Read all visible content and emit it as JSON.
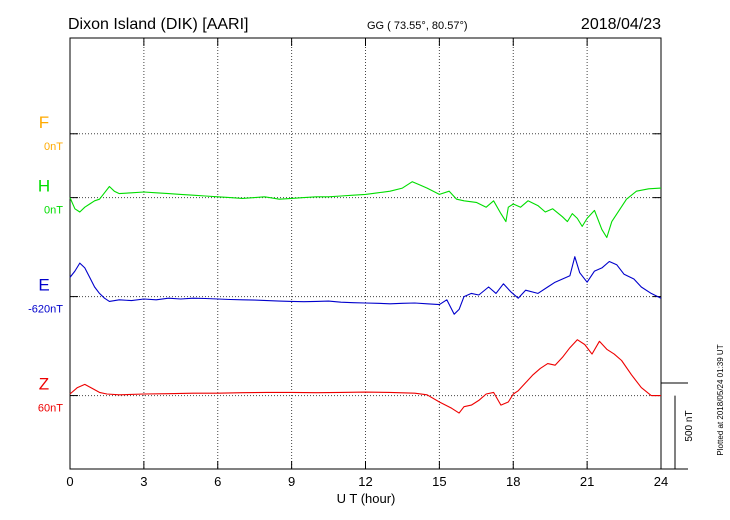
{
  "header": {
    "station": "Dixon Island (DIK)  [AARI]",
    "coords": "GG ( 73.55°,  80.57°)",
    "date": "2018/04/23"
  },
  "side_note": "Plotted at 2018/05/24 01:39 UT",
  "scale_label": "500 nT",
  "chart_data": {
    "type": "line",
    "title": "Dixon Island (DIK)  [AARI]",
    "xlabel": "U T (hour)",
    "ylabel": "",
    "xlim": [
      0,
      24
    ],
    "xticks": [
      "0",
      "3",
      "6",
      "9",
      "12",
      "15",
      "18",
      "21",
      "24"
    ],
    "ylim_nT": [
      -1700,
      1000
    ],
    "grid": true,
    "scale_bar_nT": 500,
    "series": [
      {
        "name": "F",
        "baseline_label": "0nT",
        "offset_nT": 400,
        "color": "#ffaa00",
        "x": [],
        "y": []
      },
      {
        "name": "H",
        "baseline_label": "0nT",
        "offset_nT": 0,
        "color": "#00dd00",
        "x": [
          0,
          0.2,
          0.4,
          0.6,
          0.8,
          1.0,
          1.2,
          1.4,
          1.6,
          1.8,
          2.0,
          2.5,
          3.0,
          3.5,
          4.0,
          4.5,
          5.0,
          5.5,
          6.0,
          6.5,
          7.0,
          7.5,
          7.9,
          8.1,
          8.5,
          9.0,
          9.5,
          10.0,
          10.5,
          11.0,
          11.5,
          12.0,
          12.5,
          13.0,
          13.5,
          13.9,
          14.2,
          14.5,
          15.0,
          15.4,
          15.7,
          16.0,
          16.5,
          16.9,
          17.2,
          17.5,
          17.7,
          17.8,
          18.0,
          18.3,
          18.6,
          19.0,
          19.3,
          19.6,
          20.0,
          20.2,
          20.4,
          20.6,
          20.8,
          21.0,
          21.3,
          21.6,
          21.8,
          22.0,
          22.3,
          22.6,
          23.0,
          23.5,
          24.0
        ],
        "y": [
          0,
          -70,
          -90,
          -60,
          -40,
          -20,
          -10,
          30,
          70,
          40,
          25,
          30,
          35,
          30,
          25,
          20,
          15,
          10,
          5,
          0,
          -5,
          0,
          5,
          0,
          -10,
          -5,
          0,
          5,
          5,
          10,
          15,
          20,
          30,
          40,
          60,
          100,
          80,
          60,
          20,
          40,
          -10,
          -20,
          -30,
          -60,
          -20,
          -100,
          -150,
          -60,
          -40,
          -60,
          -20,
          -50,
          -90,
          -70,
          -120,
          -150,
          -100,
          -130,
          -180,
          -130,
          -80,
          -200,
          -250,
          -150,
          -80,
          -10,
          40,
          55,
          60
        ]
      },
      {
        "name": "E",
        "baseline_label": "-620nT",
        "offset_nT": -620,
        "color": "#0000cc",
        "x": [
          0,
          0.2,
          0.4,
          0.6,
          0.8,
          1.0,
          1.2,
          1.4,
          1.6,
          2.0,
          2.5,
          3.0,
          3.5,
          4.0,
          4.5,
          5.0,
          5.5,
          6.0,
          6.5,
          7.0,
          7.5,
          8.0,
          8.5,
          9.0,
          9.5,
          10.0,
          10.5,
          11.0,
          11.5,
          12.0,
          12.5,
          13.0,
          13.5,
          14.0,
          14.5,
          15.0,
          15.3,
          15.6,
          15.8,
          16.0,
          16.3,
          16.6,
          17.0,
          17.3,
          17.6,
          17.9,
          18.2,
          18.5,
          19.0,
          19.4,
          19.7,
          20.0,
          20.3,
          20.5,
          20.7,
          21.0,
          21.3,
          21.6,
          21.9,
          22.2,
          22.5,
          22.9,
          23.2,
          23.6,
          24.0
        ],
        "y": [
          120,
          160,
          210,
          180,
          120,
          60,
          20,
          -10,
          -30,
          -20,
          -25,
          -15,
          -20,
          -10,
          -15,
          -10,
          -12,
          -15,
          -18,
          -20,
          -22,
          -25,
          -28,
          -30,
          -32,
          -30,
          -28,
          -35,
          -38,
          -40,
          -42,
          -45,
          -42,
          -40,
          -45,
          -50,
          -20,
          -110,
          -80,
          0,
          20,
          10,
          60,
          20,
          80,
          30,
          -10,
          40,
          20,
          60,
          90,
          110,
          130,
          250,
          150,
          90,
          160,
          180,
          220,
          200,
          140,
          110,
          60,
          20,
          -10
        ]
      },
      {
        "name": "Z",
        "baseline_label": "60nT",
        "offset_nT": -1240,
        "color": "#ee0000",
        "x": [
          0,
          0.3,
          0.6,
          0.9,
          1.2,
          1.5,
          2.0,
          3.0,
          4.0,
          5.0,
          6.0,
          7.0,
          8.0,
          9.0,
          10.0,
          11.0,
          12.0,
          13.0,
          14.0,
          14.5,
          15.0,
          15.5,
          15.8,
          16.0,
          16.3,
          16.6,
          16.9,
          17.2,
          17.5,
          17.8,
          18.0,
          18.2,
          18.5,
          18.8,
          19.1,
          19.4,
          19.7,
          20.0,
          20.3,
          20.6,
          20.9,
          21.2,
          21.5,
          21.8,
          22.1,
          22.4,
          22.8,
          23.2,
          23.6,
          24.0
        ],
        "y": [
          10,
          50,
          70,
          45,
          20,
          10,
          5,
          10,
          12,
          15,
          15,
          18,
          20,
          20,
          18,
          20,
          22,
          20,
          15,
          5,
          -40,
          -80,
          -110,
          -70,
          -60,
          -30,
          10,
          20,
          -60,
          -40,
          10,
          30,
          80,
          130,
          170,
          200,
          190,
          240,
          300,
          350,
          320,
          260,
          340,
          290,
          260,
          220,
          130,
          50,
          0,
          0
        ]
      }
    ]
  }
}
